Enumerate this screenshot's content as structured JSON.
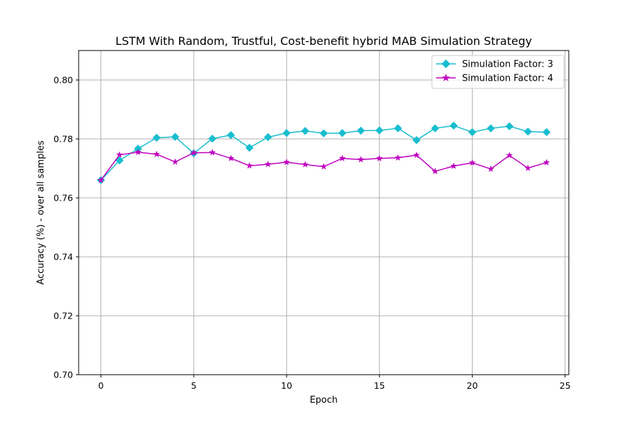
{
  "chart_data": {
    "type": "line",
    "title": "LSTM With Random, Trustful, Cost-benefit hybrid MAB Simulation Strategy",
    "xlabel": "Epoch",
    "ylabel": "Accuracy (%) - over all samples",
    "xlim": [
      -1.2,
      25.2
    ],
    "ylim": [
      0.7,
      0.81
    ],
    "xticks": [
      0,
      5,
      10,
      15,
      20,
      25
    ],
    "yticks": [
      0.7,
      0.72,
      0.74,
      0.76,
      0.78,
      0.8
    ],
    "xtick_labels": [
      "0",
      "5",
      "10",
      "15",
      "20",
      "25"
    ],
    "ytick_labels": [
      "0.70",
      "0.72",
      "0.74",
      "0.76",
      "0.78",
      "0.80"
    ],
    "grid": true,
    "legend_position": "top-right",
    "x": [
      0,
      1,
      2,
      3,
      4,
      5,
      6,
      7,
      8,
      9,
      10,
      11,
      12,
      13,
      14,
      15,
      16,
      17,
      18,
      19,
      20,
      21,
      22,
      23,
      24
    ],
    "series": [
      {
        "name": "Simulation Factor: 3",
        "color": "#17becf",
        "marker": "diamond",
        "values": [
          0.766,
          0.7727,
          0.7767,
          0.7804,
          0.7807,
          0.7751,
          0.7801,
          0.7813,
          0.777,
          0.7806,
          0.782,
          0.7827,
          0.7819,
          0.782,
          0.7828,
          0.7829,
          0.7836,
          0.7796,
          0.7836,
          0.7845,
          0.7823,
          0.7836,
          0.7843,
          0.7825,
          0.7823
        ]
      },
      {
        "name": "Simulation Factor: 4",
        "color": "#bf00bf",
        "marker": "star",
        "values": [
          0.766,
          0.7746,
          0.7755,
          0.7748,
          0.7722,
          0.7753,
          0.7754,
          0.7734,
          0.7709,
          0.7714,
          0.7721,
          0.7713,
          0.7706,
          0.7734,
          0.773,
          0.7734,
          0.7736,
          0.7745,
          0.769,
          0.7708,
          0.7719,
          0.7698,
          0.7744,
          0.7701,
          0.772
        ]
      }
    ]
  }
}
